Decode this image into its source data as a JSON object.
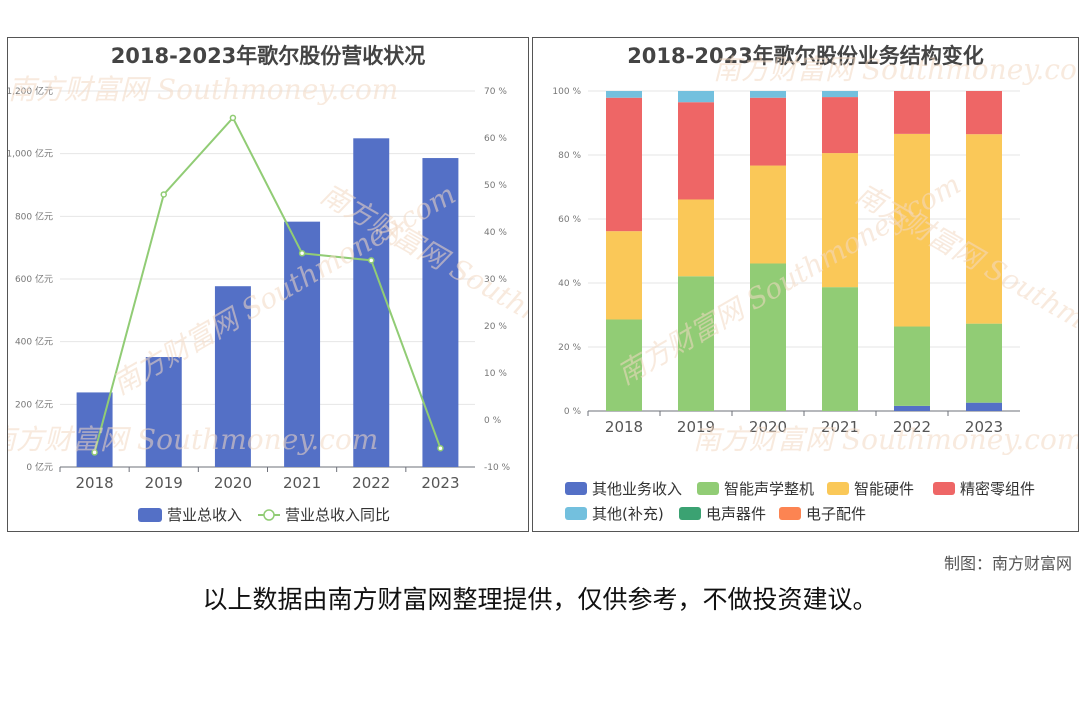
{
  "footer": {
    "credit": "制图：南方财富网",
    "note": "以上数据由南方财富网整理提供，仅供参考，不做投资建议。"
  },
  "watermark": {
    "cn": "南方财富网",
    "en": "Southmoney.com"
  },
  "chart_data": [
    {
      "type": "bar",
      "title": "2018-2023年歌尔股份营收状况",
      "categories": [
        "2018",
        "2019",
        "2020",
        "2021",
        "2022",
        "2023"
      ],
      "y_left": {
        "range": [
          0,
          1200
        ],
        "ticks": [
          "0 亿元",
          "200 亿元",
          "400 亿元",
          "600 亿元",
          "800 亿元",
          "1,000 亿元",
          "1,200 亿元"
        ]
      },
      "y_right": {
        "range": [
          -10,
          70
        ],
        "ticks": [
          "-10 %",
          "0 %",
          "10 %",
          "20 %",
          "30 %",
          "40 %",
          "50 %",
          "60 %",
          "70 %"
        ]
      },
      "series": [
        {
          "name": "营业总收入",
          "type": "bar",
          "color": "#5470c6",
          "values": [
            238,
            351,
            577,
            783,
            1049,
            986
          ]
        },
        {
          "name": "营业总收入同比",
          "type": "line",
          "color": "#91cc75",
          "values": [
            -6.9,
            47.99,
            64.29,
            35.47,
            33.97,
            -6.0
          ]
        }
      ],
      "legend": "bottom"
    },
    {
      "type": "bar",
      "stacked": true,
      "title": "2018-2023年歌尔股份业务结构变化",
      "categories": [
        "2018",
        "2019",
        "2020",
        "2021",
        "2022",
        "2023"
      ],
      "y": {
        "range": [
          0,
          100
        ],
        "ticks": [
          "0 %",
          "20 %",
          "40 %",
          "60 %",
          "80 %",
          "100 %"
        ]
      },
      "series": [
        {
          "name": "其他业务收入",
          "color": "#5470c6",
          "values": [
            0,
            0,
            0,
            0,
            1.6,
            2.6
          ]
        },
        {
          "name": "智能声学整机",
          "color": "#91cc75",
          "values": [
            28.6,
            42.1,
            46.1,
            38.7,
            24.8,
            24.7
          ]
        },
        {
          "name": "智能硬件",
          "color": "#fac858",
          "values": [
            27.6,
            24.0,
            30.6,
            41.9,
            60.2,
            59.2
          ]
        },
        {
          "name": "精密零组件",
          "color": "#ee6666",
          "values": [
            41.7,
            30.4,
            21.2,
            17.5,
            13.4,
            13.5
          ]
        },
        {
          "name": "其他(补充)",
          "color": "#73c0de",
          "values": [
            2.1,
            3.5,
            2.1,
            1.9,
            0,
            0
          ]
        },
        {
          "name": "电声器件",
          "color": "#3ba272",
          "values": [
            0,
            0,
            0,
            0,
            0,
            0
          ]
        },
        {
          "name": "电子配件",
          "color": "#fc8452",
          "values": [
            0,
            0,
            0,
            0,
            0,
            0
          ]
        }
      ],
      "legend": "bottom"
    }
  ]
}
